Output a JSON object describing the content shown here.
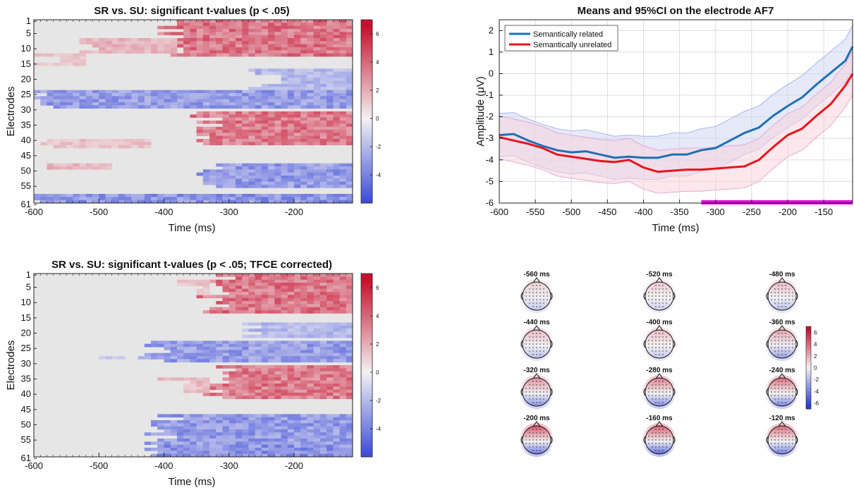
{
  "colors": {
    "pos": "#c8102e",
    "neg": "#2c3bd6",
    "neutral": "#e6e6e6",
    "related": "#1f6fb5",
    "unrelated": "#e8131b",
    "sig_bar": "#e600e6"
  },
  "chart_data": [
    {
      "type": "heatmap",
      "title": "SR vs. SU: significant t-values (p < .05)",
      "xlabel": "Time (ms)",
      "ylabel": "Electrodes",
      "xlim": [
        -600,
        -110
      ],
      "ylim": [
        1,
        61
      ],
      "x_ticks": [
        "-600",
        "-500",
        "-400",
        "-300",
        "-200"
      ],
      "y_ticks": [
        "1",
        "5",
        "10",
        "15",
        "20",
        "25",
        "30",
        "35",
        "40",
        "45",
        "50",
        "55",
        "61"
      ],
      "colorbar": {
        "range": [
          -6,
          7
        ],
        "ticks": [
          "6",
          "4",
          "2",
          "0",
          "-2",
          "-4"
        ]
      },
      "clusters": [
        {
          "sign": 1,
          "t0": -380,
          "t1": -110,
          "e0": 1,
          "e1": 13,
          "t": 4.5
        },
        {
          "sign": 1,
          "t0": -500,
          "t1": -380,
          "e0": 7,
          "e1": 12,
          "t": 2.3
        },
        {
          "sign": 1,
          "t0": -580,
          "t1": -520,
          "e0": 12,
          "e1": 16,
          "t": 1.6
        },
        {
          "sign": -1,
          "t0": -250,
          "t1": -110,
          "e0": 17,
          "e1": 24,
          "t": -2.6
        },
        {
          "sign": -1,
          "t0": -600,
          "t1": -110,
          "e0": 24,
          "e1": 30,
          "t": -3.8
        },
        {
          "sign": 1,
          "t0": -330,
          "t1": -110,
          "e0": 31,
          "e1": 42,
          "t": 4.3
        },
        {
          "sign": 1,
          "t0": -580,
          "t1": -420,
          "e0": 40,
          "e1": 43,
          "t": 1.7
        },
        {
          "sign": 1,
          "t0": -560,
          "t1": -480,
          "e0": 48,
          "e1": 50,
          "t": 2.2
        },
        {
          "sign": -1,
          "t0": -330,
          "t1": -110,
          "e0": 48,
          "e1": 56,
          "t": -3.9
        },
        {
          "sign": -1,
          "t0": -600,
          "t1": -110,
          "e0": 58,
          "e1": 61,
          "t": -4.2
        }
      ]
    },
    {
      "type": "line",
      "title": "Means and 95%CI on the electrode AF7",
      "xlabel": "Time (ms)",
      "ylabel": "Amplitude (μV)",
      "xlim": [
        -600,
        -110
      ],
      "ylim": [
        -6,
        2.5
      ],
      "x_ticks": [
        "-600",
        "-550",
        "-500",
        "-450",
        "-400",
        "-350",
        "-300",
        "-250",
        "-200",
        "-150"
      ],
      "y_ticks": [
        "2",
        "1",
        "0",
        "-1",
        "-2",
        "-3",
        "-4",
        "-5",
        "-6"
      ],
      "grid": true,
      "legend": "top-left",
      "x": [
        -600,
        -580,
        -560,
        -540,
        -520,
        -500,
        -480,
        -460,
        -440,
        -420,
        -400,
        -380,
        -360,
        -340,
        -320,
        -300,
        -280,
        -260,
        -240,
        -220,
        -200,
        -180,
        -160,
        -140,
        -120,
        -110
      ],
      "series": [
        {
          "name": "Semantically related",
          "color": "#1f6fb5",
          "values": [
            -2.85,
            -2.8,
            -3.1,
            -3.35,
            -3.55,
            -3.65,
            -3.6,
            -3.75,
            -3.9,
            -3.85,
            -3.9,
            -3.9,
            -3.75,
            -3.75,
            -3.55,
            -3.45,
            -3.1,
            -2.75,
            -2.5,
            -1.95,
            -1.5,
            -1.1,
            -0.5,
            0.05,
            0.6,
            1.25
          ],
          "ci": 1.0
        },
        {
          "name": "Semantically unrelated",
          "color": "#e8131b",
          "values": [
            -2.95,
            -3.1,
            -3.25,
            -3.45,
            -3.75,
            -3.85,
            -3.95,
            -4.05,
            -4.1,
            -4.0,
            -4.35,
            -4.55,
            -4.5,
            -4.45,
            -4.45,
            -4.4,
            -4.35,
            -4.3,
            -4.0,
            -3.4,
            -2.85,
            -2.55,
            -1.95,
            -1.4,
            -0.55,
            0.0
          ],
          "ci": 1.0
        }
      ],
      "significance": {
        "x0": -320,
        "x1": -110,
        "y": -6
      }
    },
    {
      "type": "heatmap",
      "title": "SR vs. SU: significant t-values (p < .05; TFCE corrected)",
      "xlabel": "Time (ms)",
      "ylabel": "Electrodes",
      "xlim": [
        -600,
        -110
      ],
      "ylim": [
        1,
        61
      ],
      "x_ticks": [
        "-600",
        "-500",
        "-400",
        "-300",
        "-200"
      ],
      "y_ticks": [
        "1",
        "5",
        "10",
        "15",
        "20",
        "25",
        "30",
        "35",
        "40",
        "45",
        "50",
        "55",
        "61"
      ],
      "colorbar": {
        "range": [
          -6,
          7
        ],
        "ticks": [
          "6",
          "4",
          "2",
          "0",
          "-2",
          "-4"
        ]
      },
      "clusters": [
        {
          "sign": 1,
          "t0": -320,
          "t1": -110,
          "e0": 1,
          "e1": 14,
          "t": 4.5
        },
        {
          "sign": 1,
          "t0": -370,
          "t1": -330,
          "e0": 3,
          "e1": 8,
          "t": 1.7
        },
        {
          "sign": -1,
          "t0": -260,
          "t1": -110,
          "e0": 17,
          "e1": 22,
          "t": -2.6
        },
        {
          "sign": -1,
          "t0": -410,
          "t1": -110,
          "e0": 23,
          "e1": 30,
          "t": -3.8
        },
        {
          "sign": -1,
          "t0": -470,
          "t1": -460,
          "e0": 27,
          "e1": 29,
          "t": -2.0
        },
        {
          "sign": 1,
          "t0": -320,
          "t1": -110,
          "e0": 31,
          "e1": 42,
          "t": 4.3
        },
        {
          "sign": 1,
          "t0": -390,
          "t1": -330,
          "e0": 35,
          "e1": 40,
          "t": 1.9
        },
        {
          "sign": -1,
          "t0": -400,
          "t1": -110,
          "e0": 47,
          "e1": 57,
          "t": -3.9
        },
        {
          "sign": -1,
          "t0": -420,
          "t1": -110,
          "e0": 57,
          "e1": 61,
          "t": -4.2
        }
      ]
    },
    {
      "type": "heatmap",
      "title": "",
      "colorbar": {
        "range": [
          -7,
          7
        ],
        "ticks": [
          "6",
          "4",
          "2",
          "0",
          "-2",
          "-4",
          "-6"
        ]
      },
      "topomaps": [
        {
          "label": "-560 ms",
          "front": 1.0,
          "back": -1.5
        },
        {
          "label": "-520 ms",
          "front": 1.2,
          "back": -1.2
        },
        {
          "label": "-480 ms",
          "front": 1.6,
          "back": -1.8
        },
        {
          "label": "-440 ms",
          "front": 1.6,
          "back": -1.8
        },
        {
          "label": "-400 ms",
          "front": 1.6,
          "back": -1.5
        },
        {
          "label": "-360 ms",
          "front": 2.2,
          "back": -3.0
        },
        {
          "label": "-320 ms",
          "front": 2.8,
          "back": -3.4
        },
        {
          "label": "-280 ms",
          "front": 3.4,
          "back": -3.6
        },
        {
          "label": "-240 ms",
          "front": 3.8,
          "back": -3.8
        },
        {
          "label": "-200 ms",
          "front": 4.6,
          "back": -4.4
        },
        {
          "label": "-160 ms",
          "front": 4.2,
          "back": -4.8
        },
        {
          "label": "-120 ms",
          "front": 3.8,
          "back": -4.0
        }
      ]
    }
  ]
}
